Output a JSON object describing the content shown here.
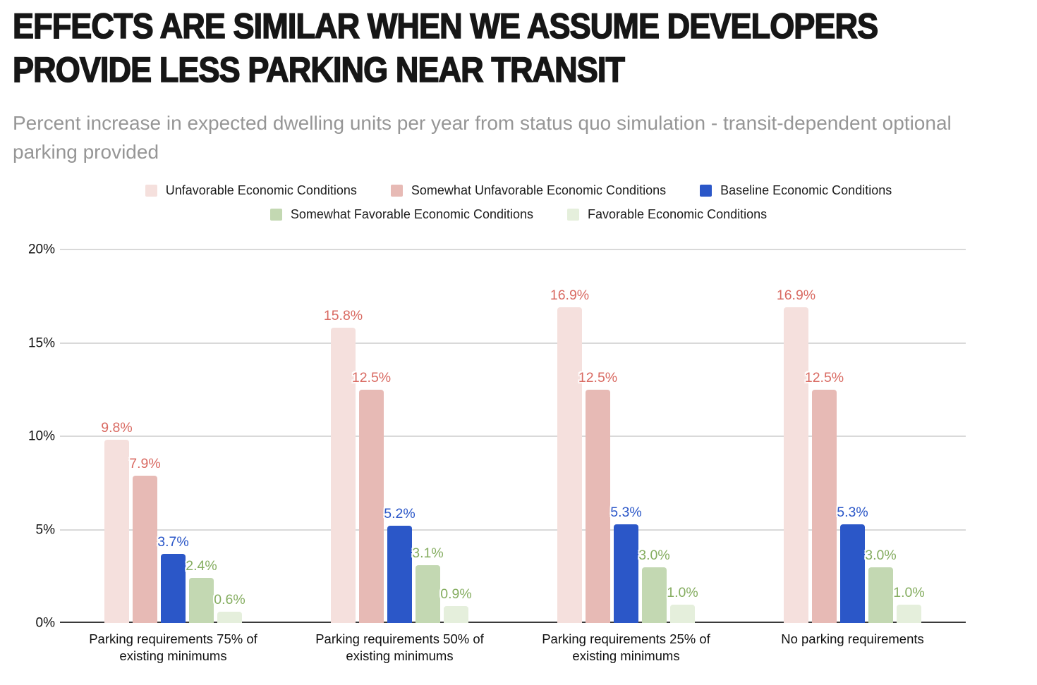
{
  "header": {
    "title": "EFFECTS ARE SIMILAR WHEN WE ASSUME DEVELOPERS PROVIDE LESS PARKING NEAR TRANSIT",
    "subtitle": "Percent increase in expected dwelling units per year from status quo simulation - transit-dependent optional parking provided"
  },
  "chart_data": {
    "type": "bar",
    "title": "EFFECTS ARE SIMILAR WHEN WE ASSUME DEVELOPERS PROVIDE LESS PARKING NEAR TRANSIT",
    "subtitle": "Percent increase in expected dwelling units per year from status quo simulation - transit-dependent optional parking provided",
    "categories": [
      "Parking requirements 75% of existing minimums",
      "Parking requirements 50% of existing minimums",
      "Parking requirements 25% of existing minimums",
      "No parking requirements"
    ],
    "series": [
      {
        "name": "Unfavorable Economic Conditions",
        "color": "#f5e0dd",
        "label_color": "#d96a62",
        "values": [
          9.8,
          15.8,
          16.9,
          16.9
        ],
        "labels": [
          "9.8%",
          "15.8%",
          "16.9%",
          "16.9%"
        ]
      },
      {
        "name": "Somewhat Unfavorable Economic Conditions",
        "color": "#e7bab5",
        "label_color": "#d96a62",
        "values": [
          7.9,
          12.5,
          12.5,
          12.5
        ],
        "labels": [
          "7.9%",
          "12.5%",
          "12.5%",
          "12.5%"
        ]
      },
      {
        "name": "Baseline Economic Conditions",
        "color": "#2b57c8",
        "label_color": "#2b57c8",
        "values": [
          3.7,
          5.2,
          5.3,
          5.3
        ],
        "labels": [
          "3.7%",
          "5.2%",
          "5.3%",
          "5.3%"
        ]
      },
      {
        "name": "Somewhat Favorable Economic Conditions",
        "color": "#c3d8b2",
        "label_color": "#85ad60",
        "values": [
          2.4,
          3.1,
          3.0,
          3.0
        ],
        "labels": [
          "2.4%",
          "3.1%",
          "3.0%",
          "3.0%"
        ]
      },
      {
        "name": "Favorable Economic Conditions",
        "color": "#e5efdc",
        "label_color": "#85ad60",
        "values": [
          0.6,
          0.9,
          1.0,
          1.0
        ],
        "labels": [
          "0.6%",
          "0.9%",
          "1.0%",
          "1.0%"
        ]
      }
    ],
    "y_axis": {
      "ticks": [
        "0%",
        "5%",
        "10%",
        "15%",
        "20%"
      ],
      "min": 0,
      "max": 20,
      "grid": true
    },
    "legend": {
      "position": "top",
      "rows": [
        [
          0,
          1,
          2
        ],
        [
          3,
          4
        ]
      ]
    }
  }
}
